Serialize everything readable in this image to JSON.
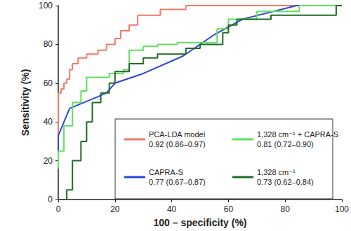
{
  "chart_data": {
    "type": "line",
    "x_label": "100 – specificity (%)",
    "y_label": "Sensitivity (%)",
    "xlim": [
      0,
      100
    ],
    "xticks": [
      0,
      20,
      40,
      60,
      80,
      100
    ],
    "ylim": [
      0,
      100
    ],
    "yticks": [
      0,
      20,
      40,
      60,
      80,
      100
    ],
    "grid": false,
    "series": [
      {
        "name": "PCA-LDA model",
        "auc": "0.92 (0.86–0.97)",
        "color": "#f07a6a",
        "x": [
          0,
          0,
          1,
          1,
          2,
          2,
          3,
          3,
          4,
          4,
          5,
          5,
          7,
          7,
          10,
          10,
          14,
          14,
          17,
          17,
          20,
          20,
          22,
          22,
          25,
          25,
          28,
          28,
          36,
          36,
          45,
          45,
          100
        ],
        "values": [
          17,
          55,
          55,
          57,
          57,
          60,
          60,
          62,
          62,
          67,
          67,
          70,
          70,
          73,
          73,
          75,
          75,
          77,
          77,
          80,
          80,
          83,
          83,
          87,
          87,
          90,
          90,
          95,
          95,
          98,
          98,
          100,
          100
        ]
      },
      {
        "name": "CAPRA-S",
        "auc": "0.77 (0.67–0.87)",
        "color": "#2b45d6",
        "x": [
          0,
          0,
          4,
          14,
          17,
          20,
          30,
          44,
          55,
          65,
          84,
          100
        ],
        "values": [
          17,
          33,
          47,
          53,
          55,
          60,
          65,
          74,
          85,
          93,
          100,
          100
        ]
      },
      {
        "name": "1,328 cm⁻¹ + CAPRA-S",
        "auc": "0.81 (0.72–0.90)",
        "color": "#5fe05f",
        "x": [
          0,
          0,
          2,
          2,
          5,
          5,
          8,
          8,
          10,
          10,
          18,
          18,
          23,
          23,
          25,
          25,
          30,
          30,
          35,
          35,
          42,
          42,
          56,
          56,
          60,
          60,
          70,
          70,
          85,
          85,
          100
        ],
        "values": [
          16,
          25,
          25,
          38,
          38,
          50,
          50,
          56,
          56,
          63,
          63,
          65,
          65,
          67,
          67,
          77,
          77,
          79,
          79,
          80,
          80,
          81,
          81,
          88,
          88,
          93,
          93,
          97,
          97,
          100,
          100
        ]
      },
      {
        "name": "1,328 cm⁻¹",
        "auc": "0.73 (0.62–0.84)",
        "color": "#1e6b22",
        "x": [
          0,
          3,
          3,
          5,
          5,
          8,
          8,
          10,
          10,
          12,
          12,
          15,
          15,
          18,
          18,
          20,
          20,
          25,
          25,
          30,
          30,
          35,
          35,
          45,
          45,
          50,
          50,
          58,
          58,
          60,
          60,
          63,
          63,
          75,
          75,
          98,
          98,
          100
        ],
        "values": [
          0,
          0,
          5,
          5,
          20,
          20,
          30,
          30,
          40,
          40,
          50,
          50,
          55,
          55,
          60,
          60,
          66,
          66,
          70,
          70,
          73,
          73,
          75,
          75,
          78,
          78,
          80,
          80,
          86,
          86,
          90,
          90,
          93,
          93,
          95,
          95,
          100,
          100
        ]
      }
    ]
  }
}
